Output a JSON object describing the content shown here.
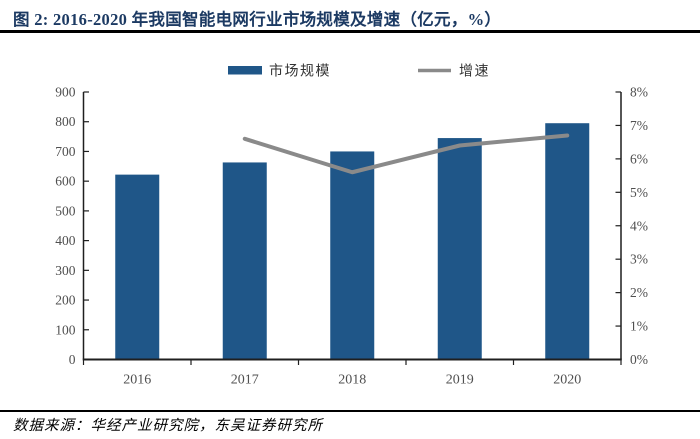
{
  "header": {
    "title": "图 2:  2016-2020 年我国智能电网行业市场规模及增速（亿元，%）"
  },
  "footer": {
    "source": "数据来源：华经产业研究院，东吴证券研究所"
  },
  "colors": {
    "bar": "#1F5688",
    "line": "#8A8A8A",
    "title_navy": "#1C3A63",
    "axis": "#1f1f1f",
    "tick_label": "#4f4f4f"
  },
  "chart_data": {
    "type": "bar",
    "subtype": "bar+line-combo",
    "title": "2016-2020 年我国智能电网行业市场规模及增速（亿元，%）",
    "categories": [
      "2016",
      "2017",
      "2018",
      "2019",
      "2020"
    ],
    "series": [
      {
        "name": "市场规模",
        "type": "bar",
        "axis": "left",
        "color": "#1F5688",
        "unit": "亿元",
        "values": [
          622,
          663,
          700,
          745,
          795
        ]
      },
      {
        "name": "增速",
        "type": "line",
        "axis": "right",
        "color": "#8A8A8A",
        "unit": "%",
        "values": [
          null,
          6.6,
          5.6,
          6.4,
          6.7
        ]
      }
    ],
    "left_axis": {
      "min": 0,
      "max": 900,
      "step": 100,
      "tick_labels": [
        "0",
        "100",
        "200",
        "300",
        "400",
        "500",
        "600",
        "700",
        "800",
        "900"
      ]
    },
    "right_axis": {
      "min": 0,
      "max": 8,
      "step": 1,
      "tick_labels": [
        "0%",
        "1%",
        "2%",
        "3%",
        "4%",
        "5%",
        "6%",
        "7%",
        "8%"
      ]
    },
    "legend_position": "top",
    "grid": false,
    "xlabel": "",
    "ylabel_left": "亿元",
    "ylabel_right": "%"
  }
}
